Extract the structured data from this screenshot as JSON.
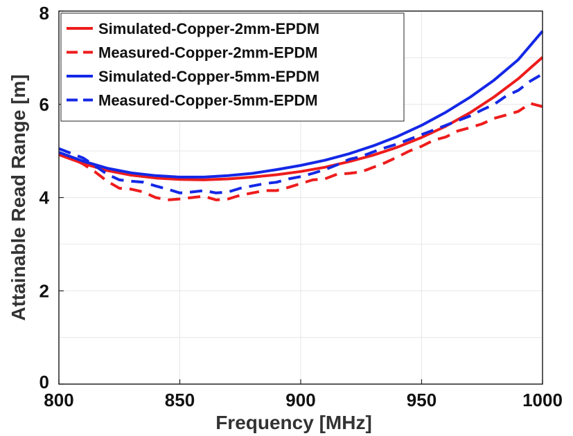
{
  "chart_data": {
    "type": "line",
    "title": "",
    "xlabel": "Frequency [MHz]",
    "ylabel": "Attainable Read Range [m]",
    "xlim": [
      800,
      1000
    ],
    "ylim": [
      0,
      8
    ],
    "xticks": [
      800,
      850,
      900,
      950,
      1000
    ],
    "yticks": [
      0,
      2,
      4,
      6,
      8
    ],
    "grid": true,
    "legend_position": "top-left",
    "series": [
      {
        "name": "Simulated-Copper-2mm-EPDM",
        "color": "#ee1c1c",
        "style": "solid",
        "x": [
          800,
          810,
          820,
          830,
          840,
          850,
          860,
          870,
          880,
          890,
          900,
          910,
          920,
          930,
          940,
          950,
          960,
          970,
          980,
          990,
          1000
        ],
        "y": [
          4.92,
          4.73,
          4.58,
          4.48,
          4.42,
          4.39,
          4.38,
          4.4,
          4.44,
          4.49,
          4.56,
          4.65,
          4.77,
          4.91,
          5.08,
          5.29,
          5.53,
          5.82,
          6.16,
          6.55,
          7.01
        ]
      },
      {
        "name": "Measured-Copper-2mm-EPDM",
        "color": "#ee1c1c",
        "style": "dashed",
        "x": [
          800,
          805,
          810,
          815,
          820,
          825,
          830,
          835,
          840,
          845,
          850,
          855,
          860,
          865,
          870,
          875,
          880,
          885,
          890,
          895,
          900,
          905,
          910,
          915,
          920,
          925,
          930,
          935,
          940,
          945,
          950,
          955,
          960,
          965,
          970,
          975,
          980,
          985,
          990,
          995,
          1000
        ],
        "y": [
          4.95,
          4.85,
          4.72,
          4.55,
          4.35,
          4.2,
          4.18,
          4.12,
          4.0,
          3.95,
          3.97,
          4.0,
          4.03,
          3.95,
          3.97,
          4.05,
          4.1,
          4.15,
          4.15,
          4.22,
          4.3,
          4.38,
          4.4,
          4.5,
          4.52,
          4.55,
          4.65,
          4.75,
          4.87,
          5.0,
          5.1,
          5.23,
          5.3,
          5.43,
          5.5,
          5.58,
          5.7,
          5.77,
          5.85,
          6.02,
          5.95
        ]
      },
      {
        "name": "Simulated-Copper-5mm-EPDM",
        "color": "#1428e6",
        "style": "solid",
        "x": [
          800,
          810,
          820,
          830,
          840,
          850,
          860,
          870,
          880,
          890,
          900,
          910,
          920,
          930,
          940,
          950,
          960,
          970,
          980,
          990,
          1000
        ],
        "y": [
          4.97,
          4.78,
          4.63,
          4.53,
          4.47,
          4.44,
          4.44,
          4.47,
          4.52,
          4.6,
          4.69,
          4.8,
          4.94,
          5.11,
          5.31,
          5.55,
          5.83,
          6.15,
          6.52,
          6.96,
          7.57
        ]
      },
      {
        "name": "Measured-Copper-5mm-EPDM",
        "color": "#1428e6",
        "style": "dashed",
        "x": [
          800,
          805,
          810,
          815,
          820,
          825,
          830,
          835,
          840,
          845,
          850,
          855,
          860,
          865,
          870,
          875,
          880,
          885,
          890,
          895,
          900,
          905,
          910,
          915,
          920,
          925,
          930,
          935,
          940,
          945,
          950,
          955,
          960,
          965,
          970,
          975,
          980,
          985,
          990,
          995,
          1000
        ],
        "y": [
          5.05,
          4.95,
          4.85,
          4.68,
          4.5,
          4.38,
          4.35,
          4.33,
          4.25,
          4.18,
          4.1,
          4.12,
          4.15,
          4.1,
          4.12,
          4.2,
          4.25,
          4.3,
          4.33,
          4.4,
          4.45,
          4.52,
          4.6,
          4.7,
          4.82,
          4.88,
          4.98,
          5.07,
          5.15,
          5.25,
          5.35,
          5.45,
          5.55,
          5.65,
          5.75,
          5.88,
          6.0,
          6.18,
          6.3,
          6.5,
          6.65
        ]
      }
    ]
  }
}
